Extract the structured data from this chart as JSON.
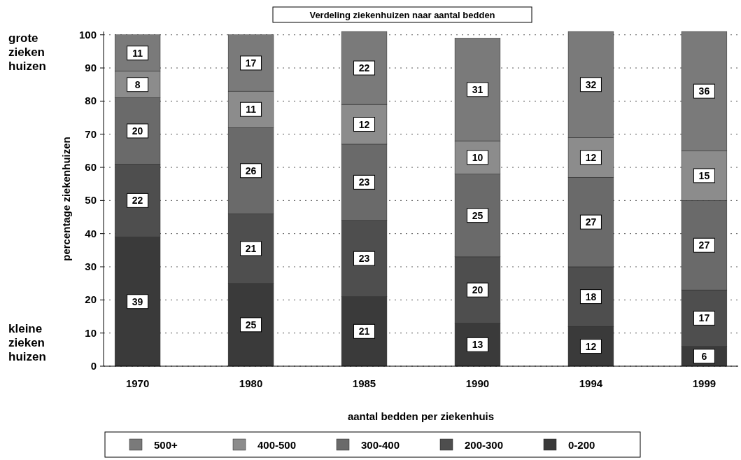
{
  "chart_data": {
    "type": "bar",
    "stacked": true,
    "title": "Verdeling ziekenhuizen naar aantal bedden",
    "xlabel": "aantal bedden per ziekenhuis",
    "ylabel": "percentage ziekenhuizen",
    "annotations": [
      "grote zieken huizen",
      "kleine zieken huizen"
    ],
    "categories": [
      "1970",
      "1980",
      "1985",
      "1990",
      "1994",
      "1999"
    ],
    "series": [
      {
        "name": "0-200",
        "color": "#3a3a3a",
        "values": [
          39,
          25,
          21,
          13,
          12,
          6
        ]
      },
      {
        "name": "200-300",
        "color": "#4e4e4e",
        "values": [
          22,
          21,
          23,
          20,
          18,
          17
        ]
      },
      {
        "name": "300-400",
        "color": "#6a6a6a",
        "values": [
          20,
          26,
          23,
          25,
          27,
          27
        ]
      },
      {
        "name": "400-500",
        "color": "#8c8c8c",
        "values": [
          8,
          11,
          12,
          10,
          12,
          15
        ]
      },
      {
        "name": "500+",
        "color": "#7a7a7a",
        "values": [
          11,
          17,
          22,
          31,
          32,
          36
        ]
      }
    ],
    "ylim": [
      0,
      101
    ],
    "yticks": [
      0,
      10,
      20,
      30,
      40,
      50,
      60,
      70,
      80,
      90,
      100
    ],
    "grid": "y",
    "legend": "bottom",
    "data_labels": true
  }
}
